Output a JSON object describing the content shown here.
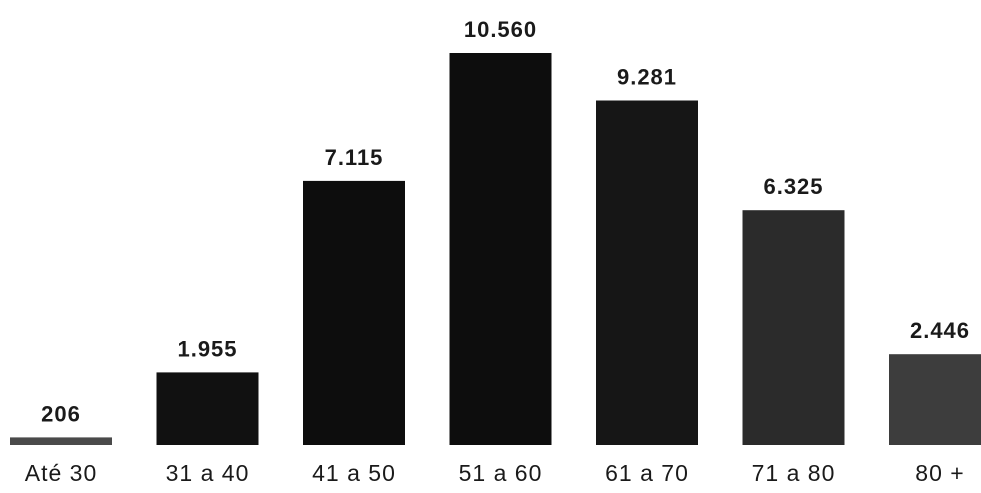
{
  "chart_data": {
    "type": "bar",
    "categories": [
      "Até 30",
      "31 a 40",
      "41 a 50",
      "51 a 60",
      "61 a 70",
      "71 a 80",
      "80 +"
    ],
    "values": [
      206,
      1955,
      7115,
      10560,
      9281,
      6325,
      2446
    ],
    "value_labels": [
      "206",
      "1.955",
      "7.115",
      "10.560",
      "9.281",
      "6.325",
      "2.446"
    ],
    "bar_colors": [
      "#4a4a4a",
      "#111111",
      "#0d0d0d",
      "#0d0d0d",
      "#161616",
      "#2b2b2b",
      "#3d3d3d"
    ],
    "title": "",
    "xlabel": "",
    "ylabel": "",
    "ylim": [
      0,
      10560
    ],
    "grid": false,
    "legend": "none"
  }
}
